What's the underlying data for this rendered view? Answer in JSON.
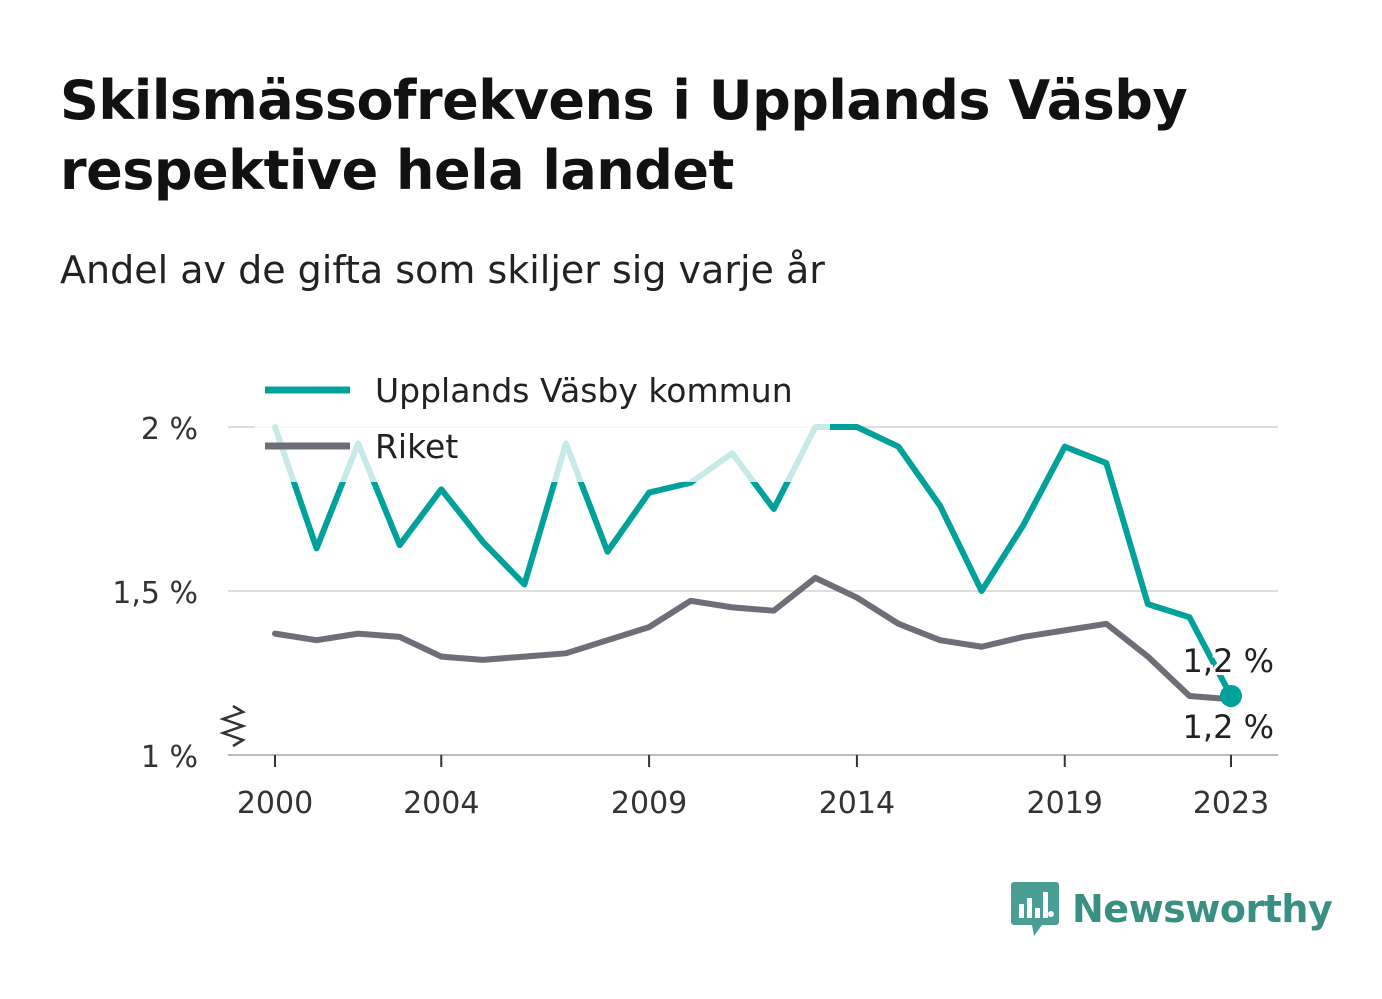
{
  "title": "Skilsmässofrekvens i Upplands Väsby respektive hela landet",
  "subtitle": "Andel av de gifta som skiljer sig varje år",
  "brand": {
    "name": "Newsworthy",
    "color": "#3a8f83",
    "icon": "bar-chart-speech-bubble-icon"
  },
  "chart_data": {
    "type": "line",
    "x": [
      2000,
      2001,
      2002,
      2003,
      2004,
      2005,
      2006,
      2007,
      2008,
      2009,
      2010,
      2011,
      2012,
      2013,
      2014,
      2015,
      2016,
      2017,
      2018,
      2019,
      2020,
      2021,
      2022,
      2023
    ],
    "x_ticks": [
      2000,
      2004,
      2009,
      2014,
      2019,
      2023
    ],
    "x_tick_labels": [
      "2000",
      "2004",
      "2009",
      "2014",
      "2019",
      "2023"
    ],
    "ylim": [
      1.0,
      2.0
    ],
    "y_ticks": [
      1.0,
      1.5,
      2.0
    ],
    "y_tick_labels": [
      "1 %",
      "1,5 %",
      "2 %"
    ],
    "y_axis_break": true,
    "grid": true,
    "legend": "top-left",
    "series": [
      {
        "name": "Upplands Väsby kommun",
        "color": "#00a19a",
        "values": [
          2.0,
          1.63,
          1.95,
          1.64,
          1.81,
          1.65,
          1.52,
          1.95,
          1.62,
          1.8,
          1.83,
          1.92,
          1.75,
          2.0,
          2.0,
          1.94,
          1.76,
          1.5,
          1.7,
          1.94,
          1.89,
          1.46,
          1.42,
          1.18
        ],
        "end_label": "1,2 %"
      },
      {
        "name": "Riket",
        "color": "#6e6e78",
        "values": [
          1.37,
          1.35,
          1.37,
          1.36,
          1.3,
          1.29,
          1.3,
          1.31,
          1.35,
          1.39,
          1.47,
          1.45,
          1.44,
          1.54,
          1.48,
          1.4,
          1.35,
          1.33,
          1.36,
          1.38,
          1.4,
          1.3,
          1.18,
          1.17
        ],
        "end_label": "1,2 %"
      }
    ]
  }
}
